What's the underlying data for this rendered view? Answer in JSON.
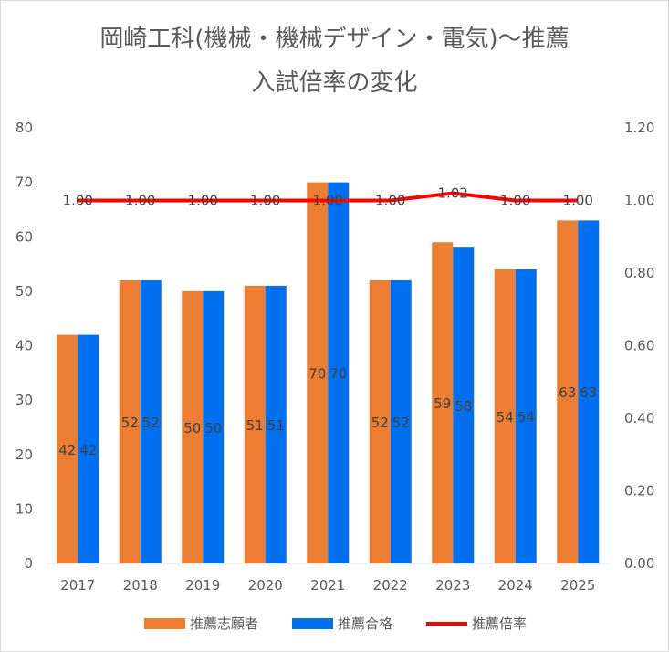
{
  "chart_data": {
    "type": "bar+line",
    "title": "岡崎工科(機械・機械デザイン・電気)〜推薦",
    "subtitle": "入試倍率の変化",
    "categories": [
      "2017",
      "2018",
      "2019",
      "2020",
      "2021",
      "2022",
      "2023",
      "2024",
      "2025"
    ],
    "series": [
      {
        "name": "推薦志願者",
        "type": "bar",
        "axis": "left",
        "color": "#ED7D31",
        "values": [
          42,
          52,
          50,
          51,
          70,
          52,
          59,
          54,
          63
        ]
      },
      {
        "name": "推薦合格",
        "type": "bar",
        "axis": "left",
        "color": "#0070F0",
        "values": [
          42,
          52,
          50,
          51,
          70,
          52,
          58,
          54,
          63
        ]
      },
      {
        "name": "推薦倍率",
        "type": "line",
        "axis": "right",
        "color": "#FF0000",
        "values": [
          1.0,
          1.0,
          1.0,
          1.0,
          1.0,
          1.0,
          1.02,
          1.0,
          1.0
        ],
        "labels": [
          "1.00",
          "1.00",
          "1.00",
          "1.00",
          "1.00",
          "1.00",
          "1.02",
          "1.00",
          "1.00"
        ]
      }
    ],
    "ylim": [
      0,
      80
    ],
    "yticks": [
      "0",
      "10",
      "20",
      "30",
      "40",
      "50",
      "60",
      "70",
      "80"
    ],
    "y2lim": [
      0,
      1.2
    ],
    "y2ticks": [
      "0.00",
      "0.20",
      "0.40",
      "0.60",
      "0.80",
      "1.00",
      "1.20"
    ],
    "grid": false,
    "legend": "bottom"
  }
}
